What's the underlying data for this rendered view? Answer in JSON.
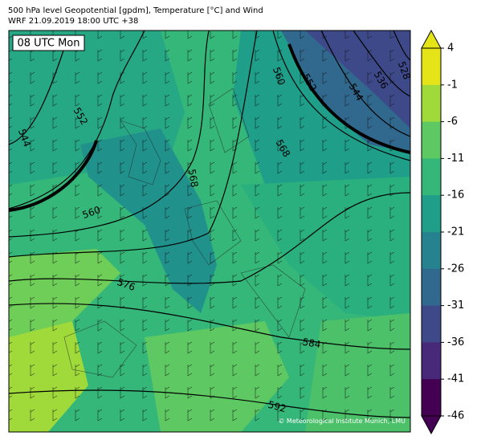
{
  "header": {
    "title": "500 hPa level Geopotential [gpdm], Temperature [°C] and Wind",
    "subtitle": "WRF 21.09.2019 18:00 UTC +38"
  },
  "map": {
    "time_label": "08 UTC Mon",
    "credit": "© Meteorological Institute Munich, LMU",
    "contour_labels": [
      "544",
      "552",
      "560",
      "568",
      "576",
      "584",
      "592",
      "560",
      "552",
      "568",
      "544",
      "536",
      "528"
    ]
  },
  "colorbar": {
    "ticks": [
      4,
      -1,
      -6,
      -11,
      -16,
      -21,
      -26,
      -31,
      -36,
      -41,
      -46
    ],
    "colors": [
      "#e5e419",
      "#9fda3a",
      "#5ec962",
      "#35b779",
      "#1f9e89",
      "#26828e",
      "#31688e",
      "#3e4989",
      "#482878",
      "#440154"
    ]
  }
}
